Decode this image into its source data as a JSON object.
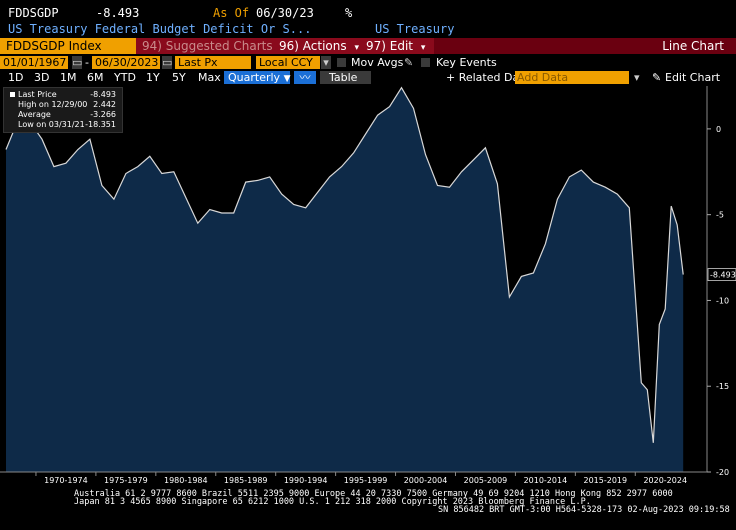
{
  "header": {
    "ticker": "FDDSGDP",
    "value": "-8.493",
    "as_of_label": "As Of",
    "as_of_date": "06/30/23",
    "percent_sign": "%",
    "description": "US Treasury Federal Budget Deficit Or S...",
    "source": "US Treasury"
  },
  "menu": {
    "ticker_field": "FDDSGDP Index",
    "suggested": "94) Suggested Charts",
    "actions": "96) Actions",
    "actions_caret": "▾",
    "edit": "97) Edit",
    "edit_caret": "▾",
    "chart_type": "Line Chart"
  },
  "controls": {
    "start_date": "01/01/1967",
    "end_date": "06/30/2023",
    "dash": "-",
    "price_field": "Last Px",
    "currency": "Local CCY",
    "mov_avgs": "Mov Avgs",
    "key_events": "Key Events"
  },
  "toolbar": {
    "tabs": [
      "1D",
      "3D",
      "1M",
      "6M",
      "YTD",
      "1Y",
      "5Y",
      "Max"
    ],
    "frequency": "Quarterly",
    "table": "Table",
    "related": "+ Related Dat",
    "add_data_placeholder": "Add Data",
    "edit_chart": "Edit Chart"
  },
  "legend": {
    "last_price_label": "Last Price",
    "last_price": "-8.493",
    "high_label": "High on 12/29/00",
    "high": "2.442",
    "average_label": "Average",
    "average": "-3.266",
    "low_label": "Low on 03/31/21",
    "low": "-18.351"
  },
  "colors": {
    "line": "#d8d8d8",
    "fill": "#0e2a48",
    "accent_orange": "#f0a000",
    "menu_red": "#6a0010",
    "header_blue": "#6fb0ff",
    "tab_selected": "#1b6fd6"
  },
  "chart_data": {
    "type": "area",
    "x": [
      1967,
      1968,
      1969,
      1970,
      1971,
      1972,
      1973,
      1974,
      1975,
      1976,
      1977,
      1978,
      1979,
      1980,
      1981,
      1982,
      1983,
      1984,
      1985,
      1986,
      1987,
      1988,
      1989,
      1990,
      1991,
      1992,
      1993,
      1994,
      1995,
      1996,
      1997,
      1998,
      1999,
      2000,
      2001,
      2002,
      2003,
      2004,
      2005,
      2006,
      2007,
      2008,
      2009,
      2010,
      2011,
      2012,
      2013,
      2014,
      2015,
      2016,
      2017,
      2018,
      2019,
      2020,
      2020.5,
      2021,
      2021.5,
      2022,
      2022.5,
      2023,
      2023.5
    ],
    "values": [
      -1.2,
      0.5,
      0.4,
      -0.6,
      -2.2,
      -2.0,
      -1.2,
      -0.6,
      -3.3,
      -4.1,
      -2.6,
      -2.2,
      -1.6,
      -2.6,
      -2.5,
      -4.0,
      -5.5,
      -4.7,
      -4.9,
      -4.9,
      -3.1,
      -3.0,
      -2.8,
      -3.8,
      -4.4,
      -4.6,
      -3.7,
      -2.8,
      -2.2,
      -1.4,
      -0.3,
      0.8,
      1.3,
      2.4,
      1.2,
      -1.5,
      -3.3,
      -3.4,
      -2.5,
      -1.8,
      -1.1,
      -3.2,
      -9.8,
      -8.6,
      -8.4,
      -6.7,
      -4.1,
      -2.8,
      -2.4,
      -3.1,
      -3.4,
      -3.8,
      -4.6,
      -14.8,
      -15.2,
      -18.3,
      -11.4,
      -10.5,
      -4.5,
      -5.6,
      -8.493
    ],
    "xlabel": "",
    "ylabel": "",
    "ylim": [
      -20,
      2.5
    ],
    "y_ticks": [
      0,
      -5,
      -10,
      -15,
      -20
    ],
    "x_tick_labels": [
      "1970-1974",
      "1975-1979",
      "1980-1984",
      "1985-1989",
      "1990-1994",
      "1995-1999",
      "2000-2004",
      "2005-2009",
      "2010-2014",
      "2015-2019",
      "2020-2024"
    ],
    "x_tick_centers": [
      1972,
      1977,
      1982,
      1987,
      1992,
      1997,
      2002,
      2007,
      2012,
      2017,
      2022
    ],
    "last_value_label": "-8.493",
    "grid": false,
    "legend_position": "top-left"
  },
  "footer": {
    "line1": "Australia 61 2 9777 8600 Brazil 5511 2395 9000 Europe 44 20 7330 7500 Germany 49 69 9204 1210 Hong Kong 852 2977 6000",
    "line2": "Japan 81 3 4565 8900        Singapore 65 6212 1000     U.S. 1 212 318 2000          Copyright 2023 Bloomberg Finance L.P.",
    "line3": "SN 856482 BRT  GMT-3:00 H564-5328-173 02-Aug-2023 09:19:58"
  }
}
